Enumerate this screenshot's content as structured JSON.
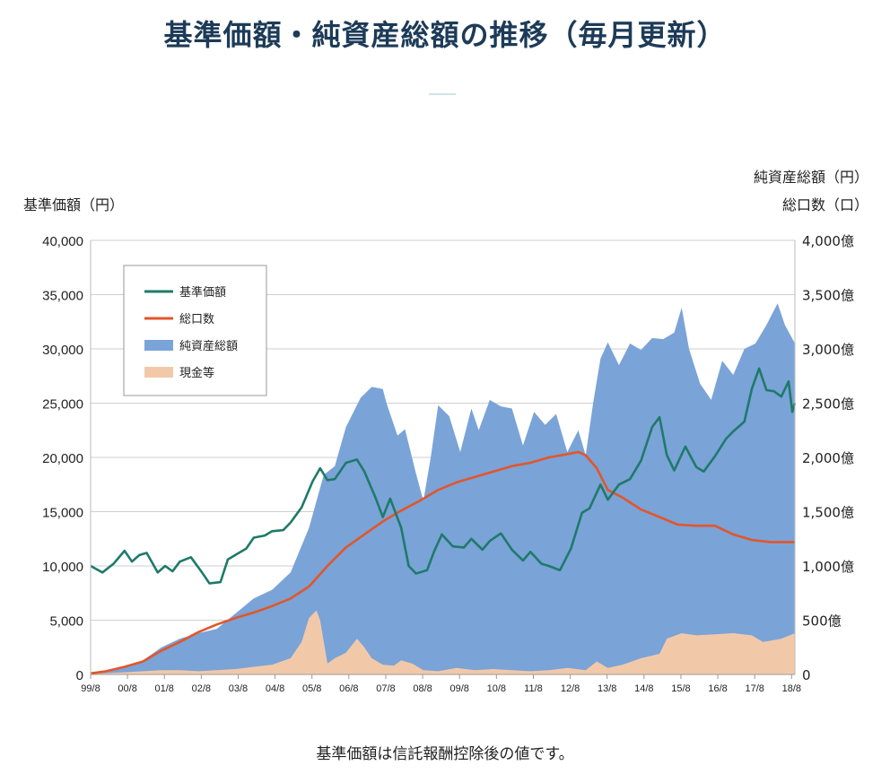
{
  "page": {
    "title": "基準価額・純資産総額の推移（毎月更新）",
    "footnote": "基準価額は信託報酬控除後の値です。"
  },
  "chart_data": {
    "type": "area",
    "left_axis": {
      "title": "基準価額（円）",
      "min": 0,
      "max": 40000,
      "ticks": [
        0,
        5000,
        10000,
        15000,
        20000,
        25000,
        30000,
        35000,
        40000
      ],
      "tick_labels": [
        "0",
        "5,000",
        "10,000",
        "15,000",
        "20,000",
        "25,000",
        "30,000",
        "35,000",
        "40,000"
      ]
    },
    "right_axis": {
      "title_line1": "純資産総額（円）",
      "title_line2": "総口数（口）",
      "min": 0,
      "max": 4000,
      "ticks": [
        0,
        500,
        1000,
        1500,
        2000,
        2500,
        3000,
        3500,
        4000
      ],
      "tick_labels": [
        "0",
        "500億",
        "1,000億",
        "1,500億",
        "2,000億",
        "2,500億",
        "3,000億",
        "3,500億",
        "4,000億"
      ]
    },
    "x_axis": {
      "min": 1999.58,
      "max": 2018.67,
      "ticks": [
        1999.58,
        2000.58,
        2001.58,
        2002.58,
        2003.58,
        2004.58,
        2005.58,
        2006.58,
        2007.58,
        2008.58,
        2009.58,
        2010.58,
        2011.58,
        2012.58,
        2013.58,
        2014.58,
        2015.58,
        2016.58,
        2017.58,
        2018.58
      ],
      "tick_labels": [
        "99/8",
        "00/8",
        "01/8",
        "02/8",
        "03/8",
        "04/8",
        "05/8",
        "06/8",
        "07/8",
        "08/8",
        "09/8",
        "10/8",
        "11/8",
        "12/8",
        "13/8",
        "14/8",
        "15/8",
        "16/8",
        "17/8",
        "18/8"
      ]
    },
    "grid": true,
    "legend": {
      "position": "top-left",
      "items": [
        {
          "label": "基準価額",
          "color": "#1f7a6a",
          "kind": "line"
        },
        {
          "label": "総口数",
          "color": "#e2562a",
          "kind": "line"
        },
        {
          "label": "純資産総額",
          "color": "#7aa3d8",
          "kind": "area"
        },
        {
          "label": "現金等",
          "color": "#f2c9a8",
          "kind": "area"
        }
      ]
    },
    "series": [
      {
        "name": "純資産総額",
        "axis": "right",
        "kind": "area",
        "color": "#7aa3d8",
        "x": [
          1999.58,
          2000.0,
          2000.5,
          2001.0,
          2001.5,
          2002.0,
          2002.5,
          2003.0,
          2003.5,
          2004.0,
          2004.5,
          2005.0,
          2005.5,
          2005.9,
          2006.2,
          2006.5,
          2006.9,
          2007.2,
          2007.5,
          2007.6,
          2007.9,
          2008.1,
          2008.4,
          2008.6,
          2008.8,
          2009.0,
          2009.3,
          2009.6,
          2009.9,
          2010.1,
          2010.4,
          2010.7,
          2011.0,
          2011.3,
          2011.6,
          2011.9,
          2012.2,
          2012.5,
          2012.8,
          2013.0,
          2013.2,
          2013.4,
          2013.6,
          2013.9,
          2014.2,
          2014.5,
          2014.8,
          2015.1,
          2015.4,
          2015.6,
          2015.8,
          2016.1,
          2016.4,
          2016.7,
          2017.0,
          2017.3,
          2017.6,
          2017.9,
          2018.2,
          2018.4,
          2018.67
        ],
        "values": [
          10,
          30,
          70,
          130,
          250,
          330,
          380,
          420,
          560,
          700,
          780,
          940,
          1350,
          1840,
          1920,
          2280,
          2550,
          2650,
          2630,
          2500,
          2200,
          2260,
          1850,
          1600,
          2000,
          2480,
          2380,
          2050,
          2450,
          2250,
          2530,
          2470,
          2450,
          2110,
          2420,
          2300,
          2400,
          2050,
          2250,
          2020,
          2500,
          2910,
          3060,
          2850,
          3050,
          2990,
          3100,
          3090,
          3150,
          3380,
          3000,
          2680,
          2530,
          2890,
          2760,
          3000,
          3050,
          3220,
          3420,
          3220,
          3050
        ]
      },
      {
        "name": "現金等",
        "axis": "right",
        "kind": "area",
        "color": "#f2c9a8",
        "x": [
          1999.58,
          2000.5,
          2001.0,
          2001.5,
          2002.0,
          2002.5,
          2003.0,
          2003.5,
          2004.0,
          2004.5,
          2005.0,
          2005.3,
          2005.5,
          2005.7,
          2005.8,
          2006.0,
          2006.2,
          2006.5,
          2006.8,
          2007.0,
          2007.2,
          2007.5,
          2007.8,
          2008.0,
          2008.3,
          2008.6,
          2009.0,
          2009.5,
          2010.0,
          2010.5,
          2011.0,
          2011.5,
          2012.0,
          2012.5,
          2013.0,
          2013.3,
          2013.6,
          2014.0,
          2014.5,
          2015.0,
          2015.2,
          2015.6,
          2016.0,
          2016.5,
          2017.0,
          2017.5,
          2017.8,
          2018.0,
          2018.3,
          2018.67
        ],
        "values": [
          5,
          20,
          30,
          40,
          40,
          30,
          40,
          50,
          70,
          90,
          150,
          300,
          520,
          590,
          500,
          100,
          150,
          200,
          330,
          250,
          150,
          90,
          80,
          130,
          100,
          40,
          30,
          60,
          40,
          50,
          40,
          30,
          40,
          60,
          40,
          120,
          60,
          90,
          150,
          190,
          330,
          380,
          360,
          370,
          380,
          360,
          300,
          310,
          330,
          380
        ]
      },
      {
        "name": "総口数",
        "axis": "right",
        "kind": "line",
        "color": "#e2562a",
        "x": [
          1999.58,
          2000.0,
          2000.5,
          2001.0,
          2001.5,
          2002.0,
          2002.5,
          2003.0,
          2003.5,
          2004.0,
          2004.5,
          2005.0,
          2005.5,
          2006.0,
          2006.5,
          2007.0,
          2007.5,
          2008.0,
          2008.5,
          2009.0,
          2009.5,
          2010.0,
          2010.5,
          2011.0,
          2011.5,
          2012.0,
          2012.5,
          2012.8,
          2013.0,
          2013.3,
          2013.6,
          2014.0,
          2014.5,
          2015.0,
          2015.5,
          2016.0,
          2016.5,
          2017.0,
          2017.5,
          2018.0,
          2018.67
        ],
        "values": [
          10,
          30,
          70,
          120,
          220,
          300,
          390,
          460,
          520,
          570,
          630,
          700,
          810,
          1000,
          1170,
          1290,
          1410,
          1510,
          1600,
          1700,
          1770,
          1820,
          1870,
          1920,
          1950,
          2000,
          2030,
          2050,
          2020,
          1900,
          1700,
          1630,
          1520,
          1450,
          1380,
          1370,
          1370,
          1290,
          1240,
          1220,
          1220
        ]
      },
      {
        "name": "基準価額",
        "axis": "left",
        "kind": "line",
        "color": "#1f7a6a",
        "x": [
          1999.58,
          1999.9,
          2000.2,
          2000.5,
          2000.7,
          2000.9,
          2001.1,
          2001.4,
          2001.6,
          2001.8,
          2002.0,
          2002.3,
          2002.6,
          2002.8,
          2003.1,
          2003.3,
          2003.5,
          2003.8,
          2004.0,
          2004.3,
          2004.5,
          2004.8,
          2005.0,
          2005.3,
          2005.6,
          2005.8,
          2006.0,
          2006.2,
          2006.5,
          2006.8,
          2007.0,
          2007.3,
          2007.5,
          2007.7,
          2008.0,
          2008.2,
          2008.4,
          2008.7,
          2008.9,
          2009.1,
          2009.4,
          2009.7,
          2009.9,
          2010.2,
          2010.4,
          2010.7,
          2011.0,
          2011.3,
          2011.5,
          2011.8,
          2012.0,
          2012.3,
          2012.6,
          2012.9,
          2013.1,
          2013.4,
          2013.6,
          2013.9,
          2014.2,
          2014.5,
          2014.8,
          2015.0,
          2015.2,
          2015.4,
          2015.7,
          2016.0,
          2016.2,
          2016.5,
          2016.8,
          2017.0,
          2017.3,
          2017.5,
          2017.7,
          2017.9,
          2018.1,
          2018.3,
          2018.5,
          2018.6,
          2018.67
        ],
        "values": [
          10000,
          9400,
          10200,
          11400,
          10400,
          11000,
          11200,
          9400,
          10000,
          9500,
          10400,
          10800,
          9400,
          8400,
          8500,
          10600,
          11000,
          11600,
          12600,
          12800,
          13200,
          13300,
          14000,
          15400,
          17800,
          19000,
          17900,
          18000,
          19500,
          19800,
          18700,
          16300,
          14500,
          16200,
          13500,
          10000,
          9300,
          9600,
          11400,
          12900,
          11800,
          11700,
          12500,
          11500,
          12300,
          13000,
          11500,
          10500,
          11300,
          10200,
          10000,
          9600,
          11600,
          14900,
          15300,
          17500,
          16100,
          17500,
          18000,
          19700,
          22800,
          23700,
          20200,
          18800,
          21000,
          19100,
          18700,
          20100,
          21700,
          22400,
          23300,
          26300,
          28200,
          26200,
          26100,
          25600,
          27000,
          24200,
          25000
        ]
      }
    ]
  }
}
